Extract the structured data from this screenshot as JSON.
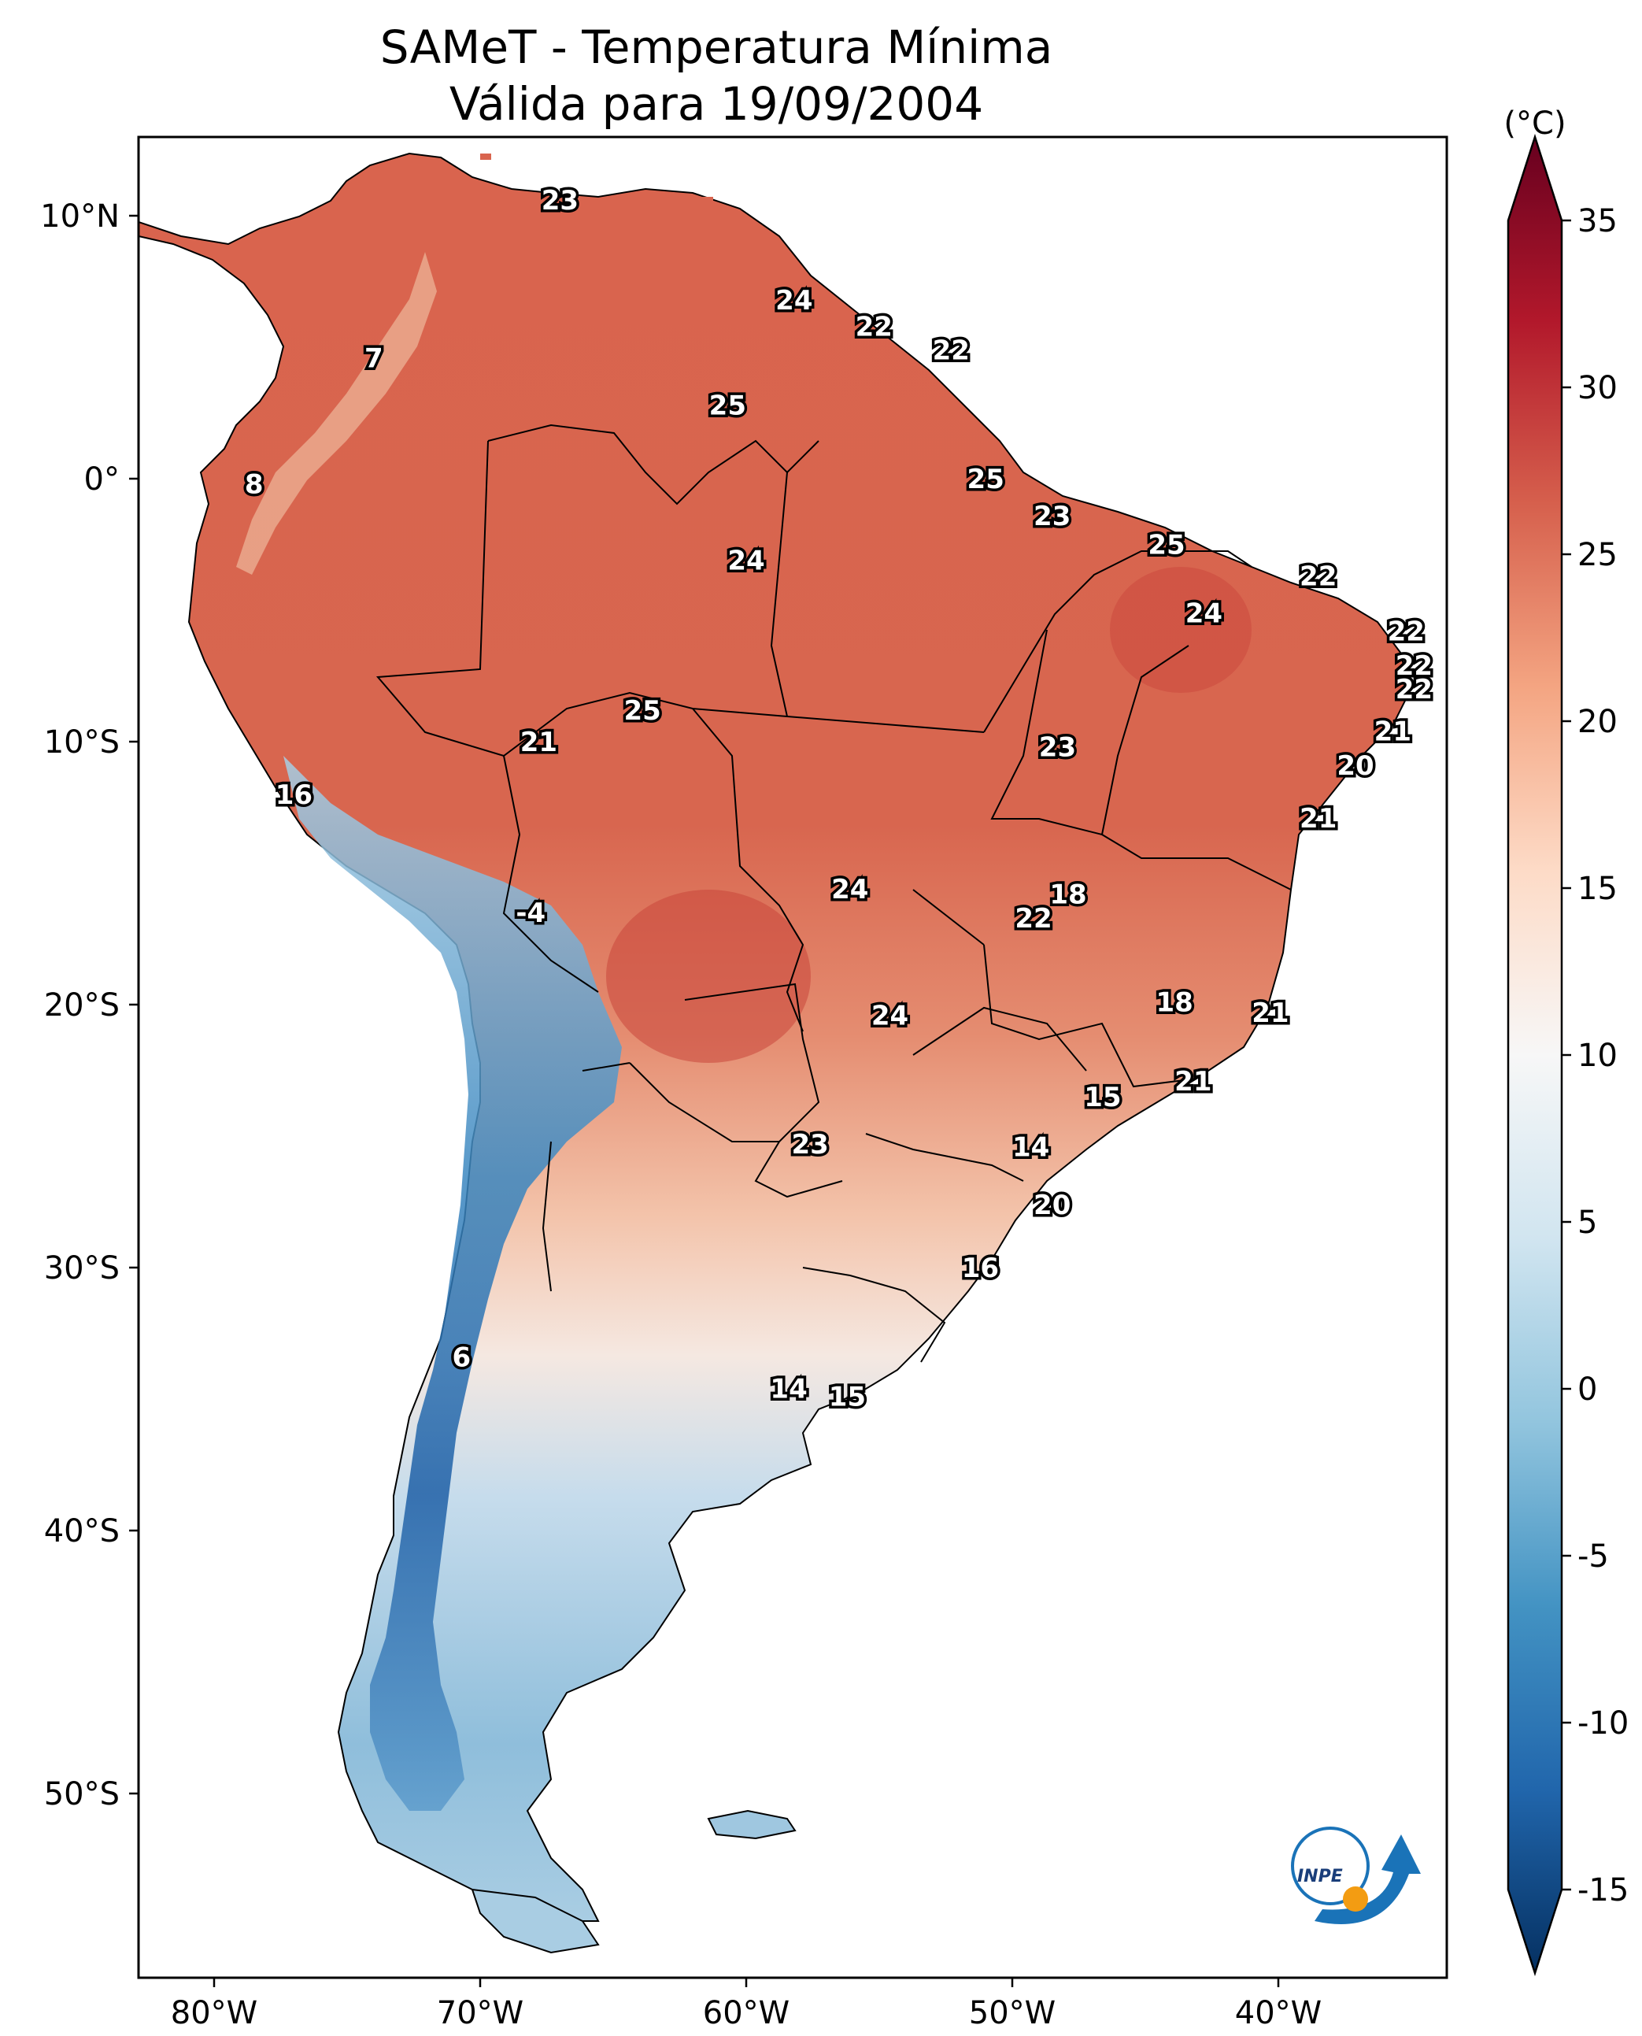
{
  "title_line1": "SAMeT - Temperatura Mínima",
  "title_line2": "Válida para 19/09/2004",
  "colorbar": {
    "unit": "(°C)",
    "min": -15,
    "max": 35,
    "ticks": [
      "35",
      "30",
      "25",
      "20",
      "15",
      "10",
      "5",
      "0",
      "-5",
      "-10",
      "-15"
    ]
  },
  "axes": {
    "lon_ticks": [
      "80°W",
      "70°W",
      "60°W",
      "50°W",
      "40°W"
    ],
    "lat_ticks": [
      "10°N",
      "0°",
      "10°S",
      "20°S",
      "30°S",
      "40°S",
      "50°S"
    ]
  },
  "logo_text": "INPE",
  "stations": [
    {
      "lon": -67.0,
      "lat": 10.6,
      "t": "23"
    },
    {
      "lon": -74.0,
      "lat": 4.6,
      "t": "7"
    },
    {
      "lon": -78.5,
      "lat": -0.2,
      "t": "8"
    },
    {
      "lon": -58.2,
      "lat": 6.8,
      "t": "24"
    },
    {
      "lon": -55.2,
      "lat": 5.8,
      "t": "22"
    },
    {
      "lon": -52.3,
      "lat": 4.9,
      "t": "22"
    },
    {
      "lon": -60.7,
      "lat": 2.8,
      "t": "25"
    },
    {
      "lon": -51.0,
      "lat": 0.0,
      "t": "25"
    },
    {
      "lon": -48.5,
      "lat": -1.4,
      "t": "23"
    },
    {
      "lon": -44.2,
      "lat": -2.5,
      "t": "25"
    },
    {
      "lon": -60.0,
      "lat": -3.1,
      "t": "24"
    },
    {
      "lon": -38.5,
      "lat": -3.7,
      "t": "22"
    },
    {
      "lon": -42.8,
      "lat": -5.1,
      "t": "24"
    },
    {
      "lon": -35.2,
      "lat": -5.8,
      "t": "22"
    },
    {
      "lon": -34.9,
      "lat": -7.1,
      "t": "22"
    },
    {
      "lon": -34.9,
      "lat": -8.0,
      "t": "22"
    },
    {
      "lon": -35.7,
      "lat": -9.6,
      "t": "21"
    },
    {
      "lon": -37.1,
      "lat": -10.9,
      "t": "20"
    },
    {
      "lon": -38.5,
      "lat": -12.9,
      "t": "21"
    },
    {
      "lon": -48.3,
      "lat": -10.2,
      "t": "23"
    },
    {
      "lon": -63.9,
      "lat": -8.8,
      "t": "25"
    },
    {
      "lon": -67.8,
      "lat": -10.0,
      "t": "21"
    },
    {
      "lon": -77.0,
      "lat": -12.0,
      "t": "16"
    },
    {
      "lon": -68.1,
      "lat": -16.5,
      "t": "-4"
    },
    {
      "lon": -56.1,
      "lat": -15.6,
      "t": "24"
    },
    {
      "lon": -47.9,
      "lat": -15.8,
      "t": "18"
    },
    {
      "lon": -49.2,
      "lat": -16.7,
      "t": "22"
    },
    {
      "lon": -54.6,
      "lat": -20.4,
      "t": "24"
    },
    {
      "lon": -43.9,
      "lat": -19.9,
      "t": "18"
    },
    {
      "lon": -40.3,
      "lat": -20.3,
      "t": "21"
    },
    {
      "lon": -43.2,
      "lat": -22.9,
      "t": "21"
    },
    {
      "lon": -46.6,
      "lat": -23.5,
      "t": "15"
    },
    {
      "lon": -57.6,
      "lat": -25.3,
      "t": "23"
    },
    {
      "lon": -49.3,
      "lat": -25.4,
      "t": "14"
    },
    {
      "lon": -48.5,
      "lat": -27.6,
      "t": "20"
    },
    {
      "lon": -51.2,
      "lat": -30.0,
      "t": "16"
    },
    {
      "lon": -70.7,
      "lat": -33.4,
      "t": "6"
    },
    {
      "lon": -58.4,
      "lat": -34.6,
      "t": "14"
    },
    {
      "lon": -56.2,
      "lat": -34.9,
      "t": "15"
    }
  ]
}
